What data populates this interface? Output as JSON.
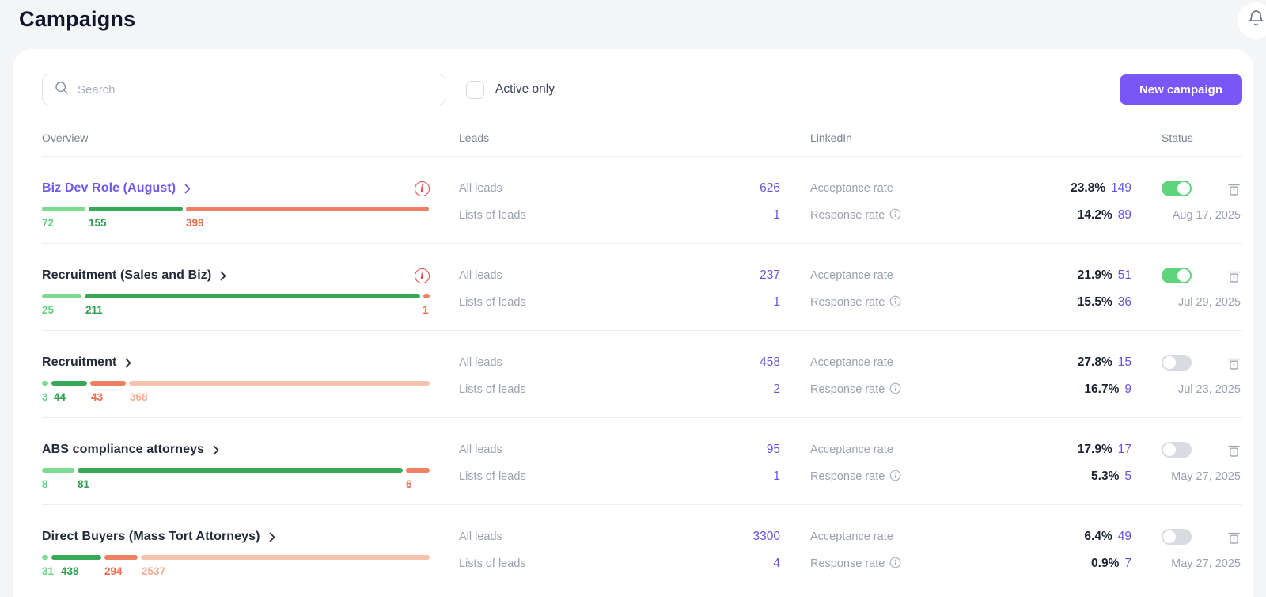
{
  "page_title": "Campaigns",
  "icons": {
    "bell": "bell-icon",
    "search": "search-icon",
    "chevron_right": "chevron-right-icon",
    "alert_glyph": "i",
    "info": "info-icon",
    "trash": "trash-icon"
  },
  "toolbar": {
    "search_placeholder": "Search",
    "active_only_label": "Active only",
    "active_only_checked": false,
    "new_campaign_label": "New campaign"
  },
  "table": {
    "columns": {
      "overview": "Overview",
      "leads": "Leads",
      "linkedin": "LinkedIn",
      "status": "Status"
    },
    "row_labels": {
      "all_leads": "All leads",
      "lists_of_leads": "Lists of leads",
      "acceptance_rate": "Acceptance rate",
      "response_rate": "Response rate"
    }
  },
  "colors": {
    "accent_purple": "#7857f6",
    "value_purple": "#6254dd",
    "title_purple": "#6e5ae8",
    "alert_red": "#e5484d",
    "toggle_on_green": "#5ed47b",
    "toggle_off_gray": "#d8dbe2",
    "segment_fill": {
      "light_green": "#7cdb90",
      "dark_green": "#3aa957",
      "orange": "#ef8163",
      "pale_orange": "#f6c3ae"
    },
    "segment_text": {
      "light_green": "#5fd27b",
      "dark_green": "#2da04e",
      "orange": "#ee6c4a",
      "pale_orange": "#f5ab94"
    }
  },
  "rows": [
    {
      "title": "Biz Dev Role (August)",
      "title_purple": true,
      "has_alert": true,
      "active": true,
      "date": "Aug 17, 2025",
      "all_leads": "626",
      "lists_of_leads": "1",
      "acceptance_pct": "23.8%",
      "acceptance_count": "149",
      "response_pct": "14.2%",
      "response_count": "89",
      "segments": [
        {
          "type": "light_green",
          "value": 72
        },
        {
          "type": "dark_green",
          "value": 155
        },
        {
          "type": "orange",
          "value": 399
        }
      ]
    },
    {
      "title": "Recruitment (Sales and Biz)",
      "title_purple": false,
      "has_alert": true,
      "active": true,
      "date": "Jul 29, 2025",
      "all_leads": "237",
      "lists_of_leads": "1",
      "acceptance_pct": "21.9%",
      "acceptance_count": "51",
      "response_pct": "15.5%",
      "response_count": "36",
      "segments": [
        {
          "type": "light_green",
          "value": 25
        },
        {
          "type": "dark_green",
          "value": 211
        },
        {
          "type": "orange",
          "value": 1
        }
      ]
    },
    {
      "title": "Recruitment",
      "title_purple": false,
      "has_alert": false,
      "active": false,
      "date": "Jul 23, 2025",
      "all_leads": "458",
      "lists_of_leads": "2",
      "acceptance_pct": "27.8%",
      "acceptance_count": "15",
      "response_pct": "16.7%",
      "response_count": "9",
      "segments": [
        {
          "type": "light_green",
          "value": 3
        },
        {
          "type": "dark_green",
          "value": 44
        },
        {
          "type": "orange",
          "value": 43
        },
        {
          "type": "pale_orange",
          "value": 368
        }
      ]
    },
    {
      "title": "ABS compliance attorneys",
      "title_purple": false,
      "has_alert": false,
      "active": false,
      "date": "May 27, 2025",
      "all_leads": "95",
      "lists_of_leads": "1",
      "acceptance_pct": "17.9%",
      "acceptance_count": "17",
      "response_pct": "5.3%",
      "response_count": "5",
      "segments": [
        {
          "type": "light_green",
          "value": 8
        },
        {
          "type": "dark_green",
          "value": 81
        },
        {
          "type": "orange",
          "value": 6
        }
      ]
    },
    {
      "title": "Direct Buyers (Mass Tort Attorneys)",
      "title_purple": false,
      "has_alert": false,
      "active": false,
      "date": "May 27, 2025",
      "all_leads": "3300",
      "lists_of_leads": "4",
      "acceptance_pct": "6.4%",
      "acceptance_count": "49",
      "response_pct": "0.9%",
      "response_count": "7",
      "segments": [
        {
          "type": "light_green",
          "value": 31
        },
        {
          "type": "dark_green",
          "value": 438
        },
        {
          "type": "orange",
          "value": 294
        },
        {
          "type": "pale_orange",
          "value": 2537
        }
      ]
    }
  ]
}
